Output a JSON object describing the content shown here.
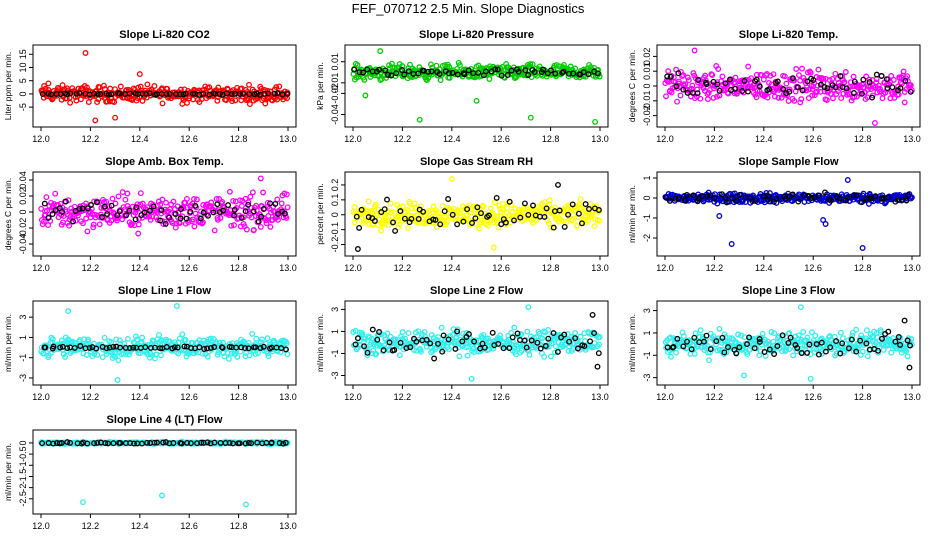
{
  "figure": {
    "title": "FEF_070712  2.5 Min. Slope Diagnostics"
  },
  "chart_data": [
    {
      "type": "scatter",
      "title": "Slope Li-820 CO2",
      "ylabel": "Liter ppm per min.",
      "xlim": [
        12.0,
        13.0
      ],
      "xticks": [
        12.0,
        12.2,
        12.4,
        12.6,
        12.8,
        13.0
      ],
      "ylim": [
        -11,
        17
      ],
      "yticks": [
        -5,
        0,
        5,
        10,
        15
      ],
      "series": [
        {
          "color": "#ff0000",
          "spread": 2.6,
          "extremes": [
            [
              12.18,
              15.5
            ],
            [
              12.22,
              -10
            ],
            [
              12.3,
              -9
            ],
            [
              12.4,
              7.5
            ],
            [
              12.03,
              4
            ]
          ]
        },
        {
          "color": "#000000",
          "spread": 0.25,
          "extremes": []
        }
      ]
    },
    {
      "type": "scatter",
      "title": "Slope Li-820 Pressure",
      "ylabel": "kPa per min.",
      "xlim": [
        12.0,
        13.0
      ],
      "xticks": [
        12.0,
        12.2,
        12.4,
        12.6,
        12.8,
        13.0
      ],
      "ylim": [
        -0.048,
        0.022
      ],
      "yticks": [
        -0.04,
        -0.02,
        -0.01,
        0.01
      ],
      "series": [
        {
          "color": "#00cc00",
          "spread": 0.006,
          "extremes": [
            [
              12.27,
              -0.045
            ],
            [
              12.5,
              -0.027
            ],
            [
              12.72,
              -0.043
            ],
            [
              12.98,
              -0.047
            ],
            [
              12.05,
              -0.022
            ],
            [
              12.11,
              0.02
            ]
          ]
        },
        {
          "color": "#000000",
          "spread": 0.003,
          "extremes": []
        }
      ]
    },
    {
      "type": "scatter",
      "title": "Slope Li-820 Temp.",
      "ylabel": "degrees C per min.",
      "xlim": [
        12.0,
        13.0
      ],
      "xticks": [
        12.0,
        12.2,
        12.4,
        12.6,
        12.8,
        13.0
      ],
      "ylim": [
        -0.025,
        0.025
      ],
      "yticks": [
        -0.02,
        -0.01,
        0,
        0.01,
        0.02
      ],
      "series": [
        {
          "color": "#ff00ff",
          "spread": 0.009,
          "extremes": [
            [
              12.85,
              -0.025
            ],
            [
              12.12,
              0.024
            ]
          ]
        },
        {
          "color": "#000000",
          "spread": 0.007,
          "extremes": []
        }
      ]
    },
    {
      "type": "scatter",
      "title": "Slope Amb. Box Temp.",
      "ylabel": "degrees C per min.",
      "xlim": [
        12.0,
        13.0
      ],
      "xticks": [
        12.0,
        12.2,
        12.4,
        12.6,
        12.8,
        13.0
      ],
      "ylim": [
        -0.05,
        0.045
      ],
      "yticks": [
        -0.04,
        -0.02,
        0,
        0.02,
        0.04
      ],
      "series": [
        {
          "color": "#ff00ff",
          "spread": 0.018,
          "extremes": [
            [
              12.89,
              0.042
            ]
          ]
        },
        {
          "color": "#000000",
          "spread": 0.012,
          "extremes": []
        }
      ]
    },
    {
      "type": "scatter",
      "title": "Slope Gas Stream RH",
      "ylabel": "percent per min.",
      "xlim": [
        12.0,
        13.0
      ],
      "xticks": [
        12.0,
        12.2,
        12.4,
        12.6,
        12.8,
        13.0
      ],
      "ylim": [
        -0.25,
        0.26
      ],
      "yticks": [
        -0.2,
        -0.1,
        0,
        0.1,
        0.2
      ],
      "series": [
        {
          "color": "#ffff00",
          "spread": 0.07,
          "extremes": [
            [
              12.4,
              0.24
            ],
            [
              12.57,
              -0.22
            ]
          ]
        },
        {
          "color": "#000000",
          "spread": 0.08,
          "extremes": [
            [
              12.02,
              -0.23
            ],
            [
              12.83,
              0.2
            ]
          ]
        }
      ]
    },
    {
      "type": "scatter",
      "title": "Slope Sample Flow",
      "ylabel": "ml/min per min.",
      "xlim": [
        12.0,
        13.0
      ],
      "xticks": [
        12.0,
        12.2,
        12.4,
        12.6,
        12.8,
        13.0
      ],
      "ylim": [
        -2.7,
        1.1
      ],
      "yticks": [
        -2,
        -1,
        0,
        1
      ],
      "series": [
        {
          "color": "#0000cc",
          "spread": 0.2,
          "extremes": [
            [
              12.27,
              -2.3
            ],
            [
              12.64,
              -1.1
            ],
            [
              12.65,
              -1.3
            ],
            [
              12.22,
              -0.9
            ],
            [
              12.74,
              0.9
            ],
            [
              12.8,
              -2.5
            ]
          ]
        },
        {
          "color": "#000000",
          "spread": 0.2,
          "extremes": []
        }
      ]
    },
    {
      "type": "scatter",
      "title": "Slope Line 1 Flow",
      "ylabel": "ml/min per min.",
      "xlim": [
        12.0,
        13.0
      ],
      "xticks": [
        12.0,
        12.2,
        12.4,
        12.6,
        12.8,
        13.0
      ],
      "ylim": [
        -3.3,
        4.2
      ],
      "yticks": [
        -3,
        -1,
        1,
        3
      ],
      "series": [
        {
          "color": "#33eeee",
          "spread": 0.9,
          "extremes": [
            [
              12.55,
              4.1
            ],
            [
              12.31,
              -3.2
            ],
            [
              12.11,
              3.6
            ]
          ]
        },
        {
          "color": "#000000",
          "spread": 0.12,
          "extremes": []
        }
      ]
    },
    {
      "type": "scatter",
      "title": "Slope Line 2 Flow",
      "ylabel": "ml/min per min.",
      "xlim": [
        12.0,
        13.0
      ],
      "xticks": [
        12.0,
        12.2,
        12.4,
        12.6,
        12.8,
        13.0
      ],
      "ylim": [
        -3.5,
        3.4
      ],
      "yticks": [
        -3,
        -1,
        1,
        3
      ],
      "series": [
        {
          "color": "#33eeee",
          "spread": 0.9,
          "extremes": [
            [
              12.71,
              3.2
            ],
            [
              12.48,
              -3.3
            ]
          ]
        },
        {
          "color": "#000000",
          "spread": 0.9,
          "extremes": [
            [
              12.99,
              -2.2
            ],
            [
              12.97,
              2.5
            ]
          ]
        }
      ]
    },
    {
      "type": "scatter",
      "title": "Slope Line 3 Flow",
      "ylabel": "ml/min per min.",
      "xlim": [
        12.0,
        13.0
      ],
      "xticks": [
        12.0,
        12.2,
        12.4,
        12.6,
        12.8,
        13.0
      ],
      "ylim": [
        -3.3,
        3.5
      ],
      "yticks": [
        -3,
        -1,
        1,
        3
      ],
      "series": [
        {
          "color": "#33eeee",
          "spread": 0.9,
          "extremes": [
            [
              12.55,
              3.3
            ],
            [
              12.59,
              -3.1
            ],
            [
              12.32,
              -2.8
            ]
          ]
        },
        {
          "color": "#000000",
          "spread": 0.9,
          "extremes": [
            [
              12.99,
              -2.1
            ],
            [
              12.97,
              2.1
            ]
          ]
        }
      ]
    },
    {
      "type": "scatter",
      "title": "Slope Line 4 (LT) Flow",
      "ylabel": "ml/min per min.",
      "xlim": [
        12.0,
        13.0
      ],
      "xticks": [
        12.0,
        12.2,
        12.4,
        12.6,
        12.8,
        13.0
      ],
      "ylim": [
        -3.0,
        0.4
      ],
      "yticks": [
        -2.5,
        -2,
        -1.5,
        -1,
        -0.5,
        0
      ],
      "series": [
        {
          "color": "#33eeee",
          "spread": 0.04,
          "extremes": [
            [
              12.17,
              -2.65
            ],
            [
              12.49,
              -2.35
            ],
            [
              12.83,
              -2.75
            ]
          ]
        },
        {
          "color": "#000000",
          "spread": 0.03,
          "extremes": []
        }
      ]
    }
  ]
}
